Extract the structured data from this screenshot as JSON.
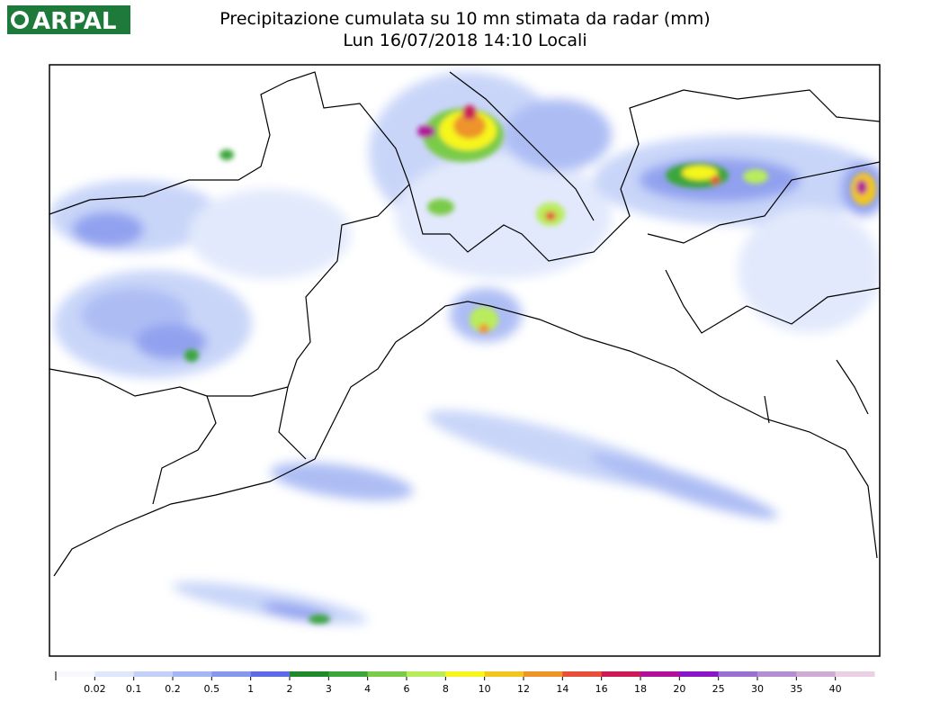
{
  "header": {
    "logo": "ARPAL",
    "title": "Precipitazione cumulata su 10 mn stimata da radar (mm)",
    "subtitle": "Lun 16/07/2018 14:10 Locali"
  },
  "legend": {
    "labels": [
      "0.02",
      "0.1",
      "0.2",
      "0.5",
      "1",
      "2",
      "3",
      "4",
      "6",
      "8",
      "10",
      "12",
      "14",
      "16",
      "18",
      "20",
      "25",
      "30",
      "35",
      "40"
    ],
    "colors": [
      "#f7f9ff",
      "#dfe7fc",
      "#c3d1f8",
      "#a4b6f3",
      "#8597ee",
      "#5e6be6",
      "#1e8a2a",
      "#3ba63a",
      "#7acb48",
      "#b9ec5c",
      "#f6f51f",
      "#f3c61f",
      "#ee9429",
      "#e74f3a",
      "#cc1c58",
      "#b0139a",
      "#8a16c6",
      "#9a70d0",
      "#b48ed3",
      "#d0acd4",
      "#ead0e2"
    ]
  }
}
